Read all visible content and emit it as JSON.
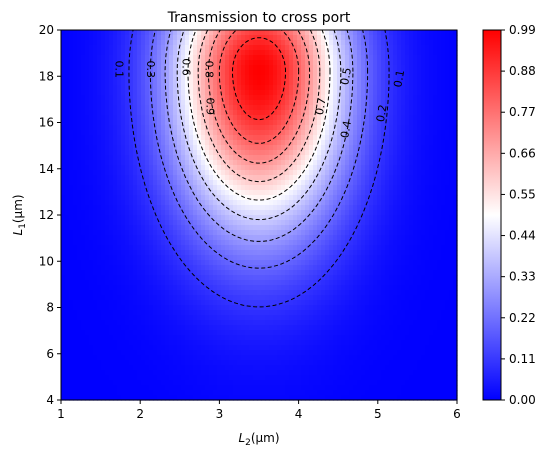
{
  "chart_data": {
    "type": "heatmap",
    "title": "Transmission to cross port",
    "xlabel": "L",
    "xlabel_sub": "2",
    "xlabel_unit": "(μm)",
    "ylabel": "L",
    "ylabel_sub": "1",
    "ylabel_unit": "(μm)",
    "xlim": [
      1,
      6
    ],
    "ylim": [
      4,
      20
    ],
    "x_ticks": [
      "1",
      "2",
      "3",
      "4",
      "5",
      "6"
    ],
    "y_ticks": [
      "4",
      "6",
      "8",
      "10",
      "12",
      "14",
      "16",
      "18",
      "20"
    ],
    "colormap": [
      "#0000ff",
      "#ffffff",
      "#ff0000"
    ],
    "colorbar_range": [
      0.0,
      0.99
    ],
    "colorbar_ticks": [
      "0.00",
      "0.11",
      "0.22",
      "0.33",
      "0.44",
      "0.55",
      "0.66",
      "0.77",
      "0.88",
      "0.99"
    ],
    "peak": {
      "x": 3.5,
      "y": 18.2,
      "value": 0.99
    },
    "contour_levels": [
      0.1,
      0.2,
      0.3,
      0.4,
      0.5,
      0.6,
      0.7,
      0.8,
      0.9
    ],
    "contour_style": "dashed",
    "contour_color": "#000000",
    "contour_labels": [
      {
        "text": "0.1",
        "x": 1.73,
        "y": 18.3
      },
      {
        "text": "0.3",
        "x": 2.13,
        "y": 18.3
      },
      {
        "text": "0.6",
        "x": 2.58,
        "y": 18.4
      },
      {
        "text": "0.8",
        "x": 2.87,
        "y": 18.3
      },
      {
        "text": "0.9",
        "x": 2.88,
        "y": 16.7
      },
      {
        "text": "0.7",
        "x": 4.28,
        "y": 16.7
      },
      {
        "text": "0.5",
        "x": 4.6,
        "y": 18.0
      },
      {
        "text": "0.4",
        "x": 4.6,
        "y": 15.7
      },
      {
        "text": "0.2",
        "x": 5.05,
        "y": 16.4
      },
      {
        "text": "0.1",
        "x": 5.27,
        "y": 17.9
      }
    ]
  }
}
